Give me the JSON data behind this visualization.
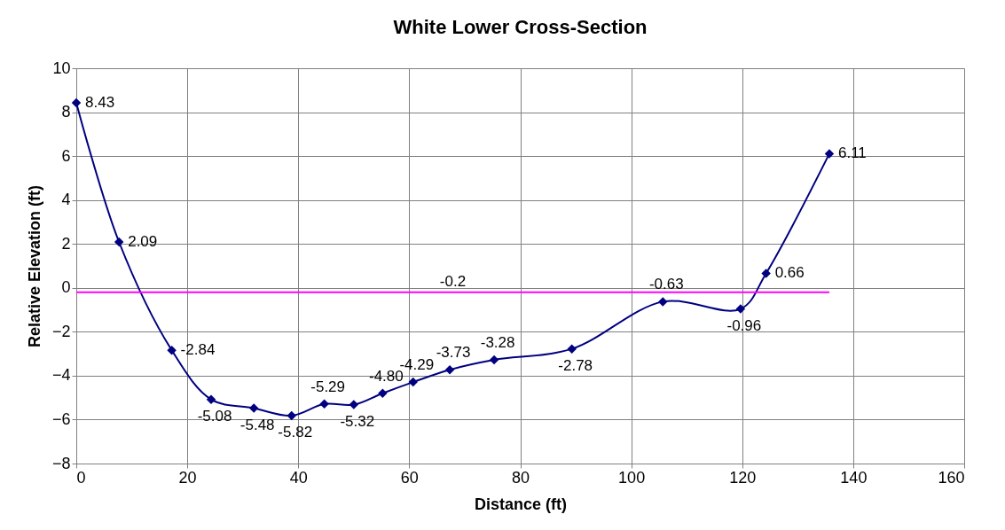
{
  "chart_data": {
    "type": "line",
    "title": "White Lower Cross-Section",
    "xlabel": "Distance (ft)",
    "ylabel": "Relative Elevation (ft)",
    "x": [
      0,
      7.7,
      17.2,
      24.3,
      32,
      38.8,
      44.7,
      50,
      55.2,
      60.7,
      67.3,
      75.3,
      89.3,
      105.7,
      119.7,
      124.3,
      135.7
    ],
    "series": [
      {
        "color": "#000080",
        "values": [
          8.43,
          2.09,
          -2.84,
          -5.08,
          -5.48,
          -5.82,
          -5.29,
          -5.32,
          -4.8,
          -4.29,
          -3.73,
          -3.28,
          -2.78,
          -0.63,
          -0.96,
          0.66,
          6.11
        ]
      }
    ],
    "value_labels": [
      "8.43",
      "2.09",
      "-2.84",
      "-5.08",
      "-5.48",
      "-5.82",
      "-5.29",
      "-5.32",
      "-4.80",
      "-4.29",
      "-3.73",
      "-3.28",
      "-2.78",
      "-0.63",
      "-0.96",
      "0.66",
      "6.11"
    ],
    "ref_lines": [
      {
        "axis": "y",
        "value": -0.2,
        "label": "-0.2",
        "color": "#ff00ff"
      }
    ],
    "xlim": [
      0,
      160
    ],
    "xticks": [
      0,
      20,
      40,
      60,
      80,
      100,
      120,
      140,
      160
    ],
    "ylim": [
      -8,
      10
    ],
    "yticks": [
      -8,
      -6,
      -4,
      -2,
      0,
      2,
      4,
      6,
      8,
      10
    ],
    "grid": true,
    "marker": "diamond",
    "line_style": "solid"
  }
}
